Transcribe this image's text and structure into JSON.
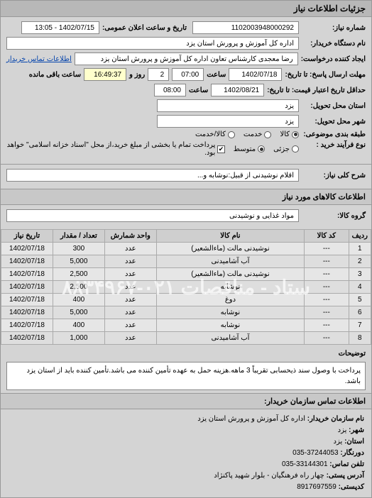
{
  "panels": {
    "main_title": "جزئیات اطلاعات نیاز"
  },
  "header": {
    "need_number_label": "شماره نیاز:",
    "need_number": "1102003948000292",
    "announce_label": "تاریخ و ساعت اعلان عمومی:",
    "announce_value": "1402/07/15 - 13:05",
    "buyer_org_label": "نام دستگاه خریدار:",
    "buyer_org": "اداره کل آموزش و پرورش استان یزد",
    "requester_label": "ایجاد کننده درخواست:",
    "requester": "رضا معجدی کارشناس تعاون اداره کل آموزش و پرورش استان یزد",
    "contact_link": "اطلاعات تماس خریدار",
    "deadline_label": "مهلت ارسال پاسخ: تا تاریخ:",
    "deadline_date": "1402/07/18",
    "time_label": "ساعت",
    "deadline_time": "07:00",
    "days_label": "روز و",
    "days_value": "2",
    "remain_label": "ساعت باقی مانده",
    "remain_time": "16:49:37",
    "validity_label": "حداقل تاریخ اعتبار قیمت: تا تاریخ:",
    "validity_date": "1402/08/21",
    "validity_time": "08:00",
    "province_label": "استان محل تحویل:",
    "province": "یزد",
    "city_label": "شهر محل تحویل:",
    "city": "یزد",
    "cat_label": "طبقه بندی موضوعی:",
    "cat_opts": {
      "goods": "کالا",
      "service": "خدمت",
      "both": "کالا/خدمت"
    },
    "cat_selected": "goods",
    "buy_label": "نوع فرآیند خرید :",
    "buy_opts": {
      "small": "جزئی",
      "medium": "متوسط"
    },
    "buy_selected": "medium",
    "buy_note": "پرداخت تمام یا بخشی از مبلغ خرید،از محل \"اسناد خزانه اسلامی\" خواهد بود.",
    "buy_check": true
  },
  "need": {
    "title_label": "شرح کلی نیاز:",
    "title": "اقلام نوشیدنی از قبیل:نوشابه و..."
  },
  "items_section": {
    "header": "اطلاعات کالاهای مورد نیاز",
    "group_label": "گروه کالا:",
    "group": "مواد غذایی و نوشیدنی"
  },
  "table": {
    "columns": [
      "ردیف",
      "کد کالا",
      "نام کالا",
      "واحد شمارش",
      "تعداد / مقدار",
      "تاریخ نیاز"
    ],
    "col_widths": [
      "6%",
      "12%",
      "40%",
      "14%",
      "14%",
      "14%"
    ],
    "rows": [
      [
        "1",
        "---",
        "نوشیدنی مالت (ماءالشعیر)",
        "عدد",
        "300",
        "1402/07/18"
      ],
      [
        "2",
        "---",
        "آب آشامیدنی",
        "عدد",
        "5,000",
        "1402/07/18"
      ],
      [
        "3",
        "---",
        "نوشیدنی مالت (ماءالشعیر)",
        "عدد",
        "2,500",
        "1402/07/18"
      ],
      [
        "4",
        "---",
        "نوشابه",
        "عدد",
        "2,500",
        "1402/07/18"
      ],
      [
        "5",
        "---",
        "دوغ",
        "عدد",
        "400",
        "1402/07/18"
      ],
      [
        "6",
        "---",
        "نوشابه",
        "عدد",
        "5,000",
        "1402/07/18"
      ],
      [
        "7",
        "---",
        "نوشابه",
        "عدد",
        "400",
        "1402/07/18"
      ],
      [
        "8",
        "---",
        "آب آشامیدنی",
        "عدد",
        "1,000",
        "1402/07/18"
      ]
    ],
    "watermark": "ستاد - مناقصات ۰۲۱-۸۸۳۴۹۶۷"
  },
  "desc": {
    "label": "توضیحات",
    "text": "پرداخت با وصول سند ذیحسابی تقریباً 3 ماهه.هزینه حمل به عهده تأمین کننده می باشد.تأمین کننده باید از استان یزد باشد."
  },
  "contact": {
    "header": "اطلاعات تماس سازمان خریدار:",
    "org_label": "نام سازمان خریدار:",
    "org": "اداره کل آموزش و پرورش استان یزد",
    "city_label": "شهر:",
    "city": "یزد",
    "province_label": "استان:",
    "province": "یزد",
    "phone_label": "دورنگار:",
    "phone": "37244053-035",
    "fax_label": "تلفن تماس:",
    "fax": "33144301-035",
    "address_label": "آدرس پستی:",
    "address": "چهار راه فرهنگیان - بلوار شهید پاکنژاد",
    "postcode_label": "کدپستی:",
    "postcode": "8917697559"
  }
}
